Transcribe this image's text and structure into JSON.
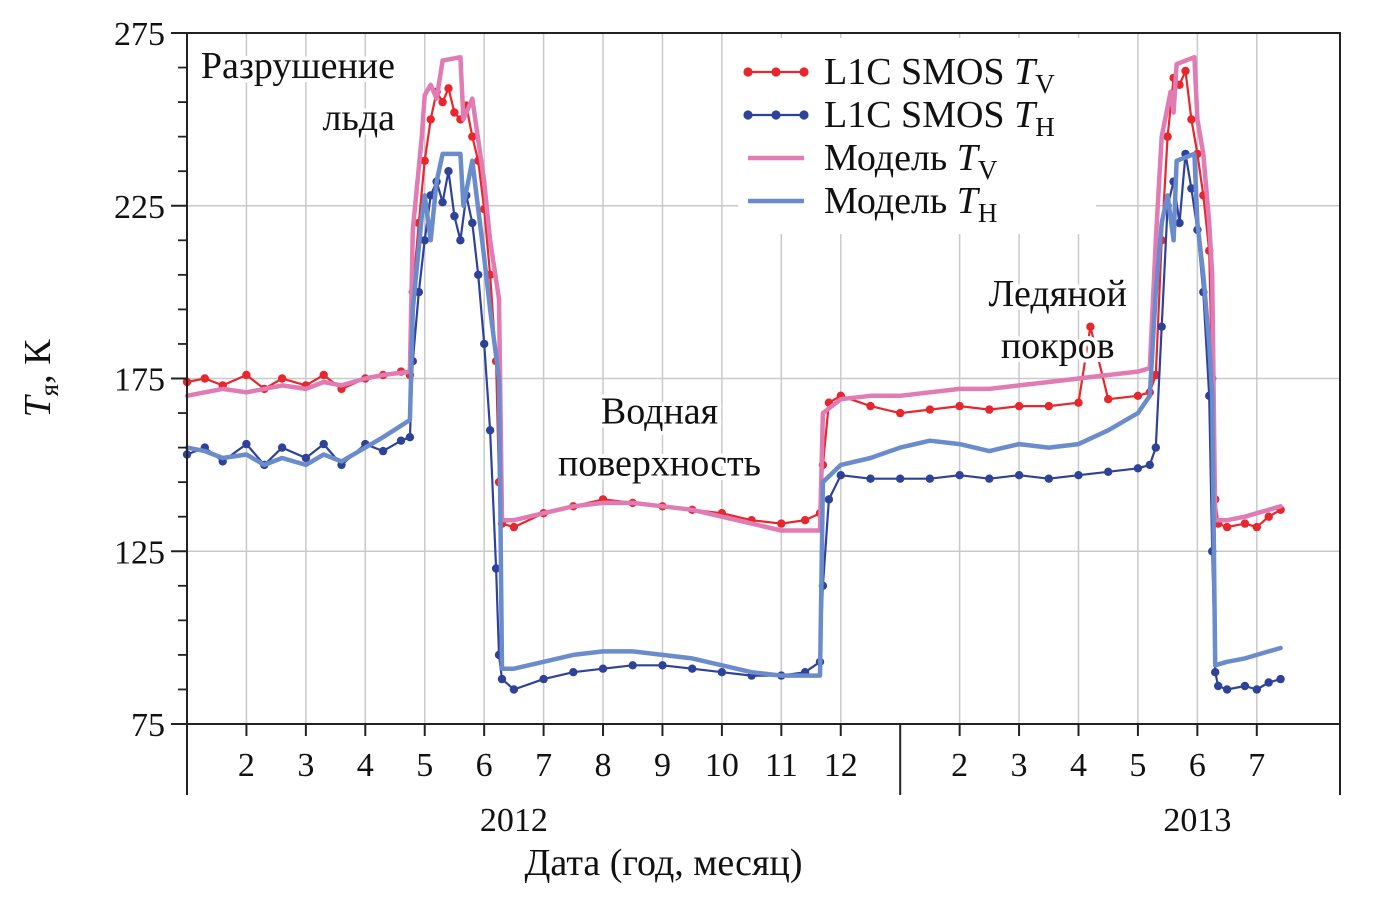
{
  "chart_data": {
    "type": "line",
    "title": "",
    "xlabel": "Дата (год, месяц)",
    "ylabel": {
      "main": "T",
      "sub": "я",
      "unit": ", К"
    },
    "ylim": [
      75,
      275
    ],
    "yticks": [
      75,
      125,
      175,
      225,
      275
    ],
    "xlim": [
      1,
      20.4
    ],
    "month_ticks": [
      {
        "x": 2,
        "label": "2"
      },
      {
        "x": 3,
        "label": "3"
      },
      {
        "x": 4,
        "label": "4"
      },
      {
        "x": 5,
        "label": "5"
      },
      {
        "x": 6,
        "label": "6"
      },
      {
        "x": 7,
        "label": "7"
      },
      {
        "x": 8,
        "label": "8"
      },
      {
        "x": 9,
        "label": "9"
      },
      {
        "x": 10,
        "label": "10"
      },
      {
        "x": 11,
        "label": "11"
      },
      {
        "x": 12,
        "label": "12"
      },
      {
        "x": 14,
        "label": "2"
      },
      {
        "x": 15,
        "label": "3"
      },
      {
        "x": 16,
        "label": "4"
      },
      {
        "x": 17,
        "label": "5"
      },
      {
        "x": 18,
        "label": "6"
      },
      {
        "x": 19,
        "label": "7"
      }
    ],
    "year_labels": [
      {
        "x": 6.5,
        "label": "2012"
      },
      {
        "x": 18.0,
        "label": "2013"
      }
    ],
    "year_separators": [
      1,
      13,
      20.4
    ],
    "annotations": [
      {
        "lines": [
          "Разрушение",
          "льда"
        ],
        "x": 4.5,
        "y": 262,
        "anchor": "end"
      },
      {
        "lines": [
          "Водная",
          "поверхность"
        ],
        "x": 8.95,
        "y": 162,
        "anchor": "middle"
      },
      {
        "lines": [
          "Ледяной",
          "покров"
        ],
        "x": 15.65,
        "y": 196,
        "anchor": "middle"
      }
    ],
    "legend": {
      "placement": "top-right",
      "entries": [
        {
          "text": "L1C SMOS ",
          "var": "T",
          "sub": "V",
          "color": "#e8262d",
          "style": "markers"
        },
        {
          "text": "L1C SMOS ",
          "var": "T",
          "sub": "H",
          "color": "#2f429a",
          "style": "markers"
        },
        {
          "text": "Модель ",
          "var": "T",
          "sub": "V",
          "color": "#e07bb3",
          "style": "line"
        },
        {
          "text": "Модель ",
          "var": "T",
          "sub": "H",
          "color": "#6b8ccc",
          "style": "line"
        }
      ]
    },
    "series": [
      {
        "name": "L1C SMOS TV",
        "color": "#e8262d",
        "style": "markers",
        "points": [
          [
            1.0,
            174
          ],
          [
            1.3,
            175
          ],
          [
            1.6,
            173
          ],
          [
            2.0,
            176
          ],
          [
            2.3,
            172
          ],
          [
            2.6,
            175
          ],
          [
            3.0,
            173
          ],
          [
            3.3,
            176
          ],
          [
            3.6,
            172
          ],
          [
            4.0,
            175
          ],
          [
            4.3,
            176
          ],
          [
            4.6,
            177
          ],
          [
            4.75,
            176
          ],
          [
            4.8,
            200
          ],
          [
            4.9,
            220
          ],
          [
            5.0,
            238
          ],
          [
            5.1,
            250
          ],
          [
            5.2,
            258
          ],
          [
            5.3,
            255
          ],
          [
            5.4,
            259
          ],
          [
            5.5,
            252
          ],
          [
            5.6,
            250
          ],
          [
            5.7,
            254
          ],
          [
            5.8,
            245
          ],
          [
            5.9,
            238
          ],
          [
            6.0,
            224
          ],
          [
            6.1,
            205
          ],
          [
            6.2,
            180
          ],
          [
            6.25,
            145
          ],
          [
            6.3,
            133
          ],
          [
            6.5,
            132
          ],
          [
            7.0,
            136
          ],
          [
            7.5,
            138
          ],
          [
            8.0,
            140
          ],
          [
            8.5,
            139
          ],
          [
            9.0,
            138
          ],
          [
            9.5,
            137
          ],
          [
            10.0,
            136
          ],
          [
            10.5,
            134
          ],
          [
            11.0,
            133
          ],
          [
            11.4,
            134
          ],
          [
            11.65,
            136
          ],
          [
            11.7,
            150
          ],
          [
            11.8,
            168
          ],
          [
            12.0,
            170
          ],
          [
            12.5,
            167
          ],
          [
            13.0,
            165
          ],
          [
            13.5,
            166
          ],
          [
            14.0,
            167
          ],
          [
            14.5,
            166
          ],
          [
            15.0,
            167
          ],
          [
            15.5,
            167
          ],
          [
            16.0,
            168
          ],
          [
            16.2,
            190
          ],
          [
            16.5,
            169
          ],
          [
            17.0,
            170
          ],
          [
            17.2,
            171
          ],
          [
            17.3,
            176
          ],
          [
            17.4,
            215
          ],
          [
            17.5,
            245
          ],
          [
            17.6,
            262
          ],
          [
            17.7,
            260
          ],
          [
            17.8,
            264
          ],
          [
            17.9,
            250
          ],
          [
            18.0,
            240
          ],
          [
            18.1,
            228
          ],
          [
            18.2,
            212
          ],
          [
            18.25,
            175
          ],
          [
            18.3,
            140
          ],
          [
            18.35,
            133
          ],
          [
            18.5,
            132
          ],
          [
            18.8,
            133
          ],
          [
            19.0,
            132
          ],
          [
            19.2,
            135
          ],
          [
            19.4,
            137
          ]
        ]
      },
      {
        "name": "L1C SMOS TH",
        "color": "#2f429a",
        "style": "markers",
        "points": [
          [
            1.0,
            153
          ],
          [
            1.3,
            155
          ],
          [
            1.6,
            151
          ],
          [
            2.0,
            156
          ],
          [
            2.3,
            150
          ],
          [
            2.6,
            155
          ],
          [
            3.0,
            152
          ],
          [
            3.3,
            156
          ],
          [
            3.6,
            150
          ],
          [
            4.0,
            156
          ],
          [
            4.3,
            154
          ],
          [
            4.6,
            157
          ],
          [
            4.75,
            158
          ],
          [
            4.8,
            180
          ],
          [
            4.9,
            200
          ],
          [
            5.0,
            215
          ],
          [
            5.1,
            228
          ],
          [
            5.2,
            232
          ],
          [
            5.3,
            226
          ],
          [
            5.4,
            235
          ],
          [
            5.5,
            222
          ],
          [
            5.6,
            215
          ],
          [
            5.7,
            228
          ],
          [
            5.8,
            220
          ],
          [
            5.9,
            205
          ],
          [
            6.0,
            185
          ],
          [
            6.1,
            160
          ],
          [
            6.2,
            120
          ],
          [
            6.25,
            95
          ],
          [
            6.3,
            88
          ],
          [
            6.5,
            85
          ],
          [
            7.0,
            88
          ],
          [
            7.5,
            90
          ],
          [
            8.0,
            91
          ],
          [
            8.5,
            92
          ],
          [
            9.0,
            92
          ],
          [
            9.5,
            91
          ],
          [
            10.0,
            90
          ],
          [
            10.5,
            89
          ],
          [
            11.0,
            89
          ],
          [
            11.4,
            90
          ],
          [
            11.65,
            93
          ],
          [
            11.7,
            115
          ],
          [
            11.8,
            140
          ],
          [
            12.0,
            147
          ],
          [
            12.5,
            146
          ],
          [
            13.0,
            146
          ],
          [
            13.5,
            146
          ],
          [
            14.0,
            147
          ],
          [
            14.5,
            146
          ],
          [
            15.0,
            147
          ],
          [
            15.5,
            146
          ],
          [
            16.0,
            147
          ],
          [
            16.5,
            148
          ],
          [
            17.0,
            149
          ],
          [
            17.2,
            150
          ],
          [
            17.3,
            155
          ],
          [
            17.4,
            190
          ],
          [
            17.5,
            225
          ],
          [
            17.6,
            232
          ],
          [
            17.7,
            220
          ],
          [
            17.8,
            240
          ],
          [
            17.9,
            230
          ],
          [
            18.0,
            218
          ],
          [
            18.1,
            200
          ],
          [
            18.2,
            170
          ],
          [
            18.25,
            125
          ],
          [
            18.3,
            90
          ],
          [
            18.35,
            86
          ],
          [
            18.5,
            85
          ],
          [
            18.8,
            86
          ],
          [
            19.0,
            85
          ],
          [
            19.2,
            87
          ],
          [
            19.4,
            88
          ]
        ]
      },
      {
        "name": "Модель TV",
        "color": "#e07bb3",
        "style": "line",
        "points": [
          [
            1.0,
            170
          ],
          [
            1.3,
            171
          ],
          [
            1.6,
            172
          ],
          [
            2.0,
            171
          ],
          [
            2.3,
            172
          ],
          [
            2.6,
            173
          ],
          [
            3.0,
            172
          ],
          [
            3.3,
            174
          ],
          [
            3.6,
            173
          ],
          [
            4.0,
            175
          ],
          [
            4.3,
            176
          ],
          [
            4.75,
            177
          ],
          [
            4.8,
            218
          ],
          [
            4.95,
            245
          ],
          [
            5.0,
            257
          ],
          [
            5.1,
            260
          ],
          [
            5.2,
            256
          ],
          [
            5.3,
            267
          ],
          [
            5.6,
            268
          ],
          [
            5.65,
            250
          ],
          [
            5.8,
            256
          ],
          [
            6.0,
            232
          ],
          [
            6.1,
            215
          ],
          [
            6.25,
            198
          ],
          [
            6.3,
            134
          ],
          [
            6.5,
            134
          ],
          [
            7.0,
            136
          ],
          [
            7.5,
            138
          ],
          [
            8.0,
            139
          ],
          [
            8.5,
            139
          ],
          [
            9.0,
            138
          ],
          [
            9.5,
            137
          ],
          [
            10.0,
            135
          ],
          [
            10.5,
            133
          ],
          [
            11.0,
            131
          ],
          [
            11.65,
            131
          ],
          [
            11.7,
            165
          ],
          [
            12.0,
            169
          ],
          [
            12.5,
            170
          ],
          [
            13.0,
            170
          ],
          [
            13.5,
            171
          ],
          [
            14.0,
            172
          ],
          [
            14.5,
            172
          ],
          [
            15.0,
            173
          ],
          [
            15.5,
            174
          ],
          [
            16.0,
            175
          ],
          [
            16.5,
            176
          ],
          [
            17.0,
            177
          ],
          [
            17.2,
            178
          ],
          [
            17.3,
            215
          ],
          [
            17.4,
            245
          ],
          [
            17.55,
            258
          ],
          [
            17.6,
            252
          ],
          [
            17.65,
            266
          ],
          [
            17.95,
            268
          ],
          [
            18.0,
            250
          ],
          [
            18.1,
            240
          ],
          [
            18.2,
            220
          ],
          [
            18.25,
            205
          ],
          [
            18.3,
            134
          ],
          [
            18.5,
            134
          ],
          [
            18.8,
            135
          ],
          [
            19.0,
            136
          ],
          [
            19.2,
            137
          ],
          [
            19.4,
            138
          ]
        ]
      },
      {
        "name": "Модель TH",
        "color": "#6b8ccc",
        "style": "line",
        "points": [
          [
            1.0,
            155
          ],
          [
            1.3,
            154
          ],
          [
            1.6,
            152
          ],
          [
            2.0,
            153
          ],
          [
            2.3,
            150
          ],
          [
            2.6,
            152
          ],
          [
            3.0,
            150
          ],
          [
            3.3,
            153
          ],
          [
            3.6,
            151
          ],
          [
            4.0,
            155
          ],
          [
            4.3,
            158
          ],
          [
            4.75,
            163
          ],
          [
            4.8,
            195
          ],
          [
            4.95,
            222
          ],
          [
            5.0,
            228
          ],
          [
            5.1,
            215
          ],
          [
            5.2,
            232
          ],
          [
            5.3,
            240
          ],
          [
            5.6,
            240
          ],
          [
            5.65,
            225
          ],
          [
            5.8,
            238
          ],
          [
            6.0,
            210
          ],
          [
            6.1,
            195
          ],
          [
            6.25,
            175
          ],
          [
            6.3,
            91
          ],
          [
            6.5,
            91
          ],
          [
            7.0,
            93
          ],
          [
            7.5,
            95
          ],
          [
            8.0,
            96
          ],
          [
            8.5,
            96
          ],
          [
            9.0,
            95
          ],
          [
            9.5,
            94
          ],
          [
            10.0,
            92
          ],
          [
            10.5,
            90
          ],
          [
            11.0,
            89
          ],
          [
            11.65,
            89
          ],
          [
            11.7,
            145
          ],
          [
            12.0,
            150
          ],
          [
            12.5,
            152
          ],
          [
            13.0,
            155
          ],
          [
            13.5,
            157
          ],
          [
            14.0,
            156
          ],
          [
            14.5,
            154
          ],
          [
            15.0,
            156
          ],
          [
            15.5,
            155
          ],
          [
            16.0,
            156
          ],
          [
            16.5,
            160
          ],
          [
            17.0,
            165
          ],
          [
            17.2,
            170
          ],
          [
            17.3,
            200
          ],
          [
            17.4,
            220
          ],
          [
            17.5,
            228
          ],
          [
            17.6,
            215
          ],
          [
            17.65,
            238
          ],
          [
            17.95,
            240
          ],
          [
            18.0,
            220
          ],
          [
            18.1,
            205
          ],
          [
            18.2,
            185
          ],
          [
            18.25,
            170
          ],
          [
            18.3,
            92
          ],
          [
            18.5,
            93
          ],
          [
            18.8,
            94
          ],
          [
            19.0,
            95
          ],
          [
            19.2,
            96
          ],
          [
            19.4,
            97
          ]
        ]
      }
    ]
  }
}
